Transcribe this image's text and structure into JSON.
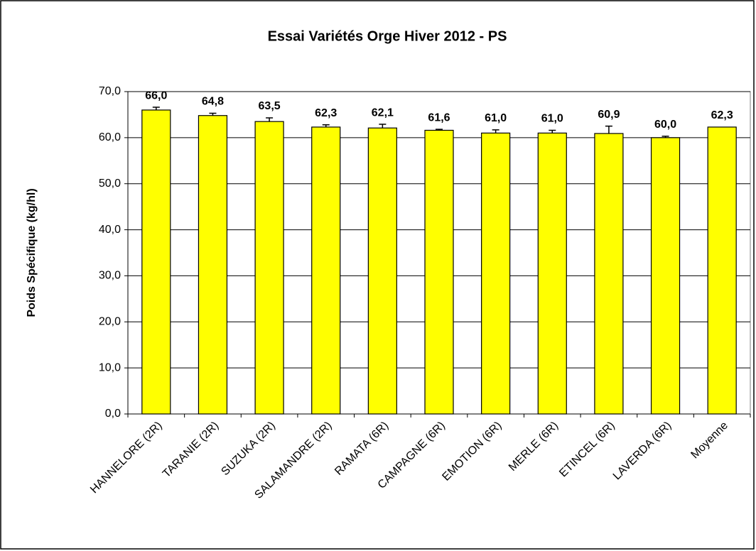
{
  "chart_data": {
    "type": "bar",
    "title": "Essai Variétés Orge Hiver 2012 - PS",
    "y_label": "Poids Spécifique (kg/hl)",
    "categories": [
      "HANNELORE (2R)",
      "TARANIE (2R)",
      "SUZUKA (2R)",
      "SALAMANDRE (2R)",
      "RAMATA (6R)",
      "CAMPAGNE (6R)",
      "EMOTION (6R)",
      "MERLE (6R)",
      "ETINCEL (6R)",
      "LAVERDA (6R)",
      "Moyenne"
    ],
    "values": [
      66.0,
      64.8,
      63.5,
      62.3,
      62.1,
      61.6,
      61.0,
      61.0,
      60.9,
      60.0,
      62.3
    ],
    "value_labels": [
      "66,0",
      "64,8",
      "63,5",
      "62,3",
      "62,1",
      "61,6",
      "61,0",
      "61,0",
      "60,9",
      "60,0",
      "62,3"
    ],
    "errors": [
      0.6,
      0.5,
      0.8,
      0.5,
      0.8,
      0.2,
      0.7,
      0.6,
      1.6,
      0.3,
      null
    ],
    "color": "#ffff00",
    "ylim": [
      0,
      70
    ],
    "yticks": [
      {
        "value": 0,
        "label": "0,0"
      },
      {
        "value": 10,
        "label": "10,0"
      },
      {
        "value": 20,
        "label": "20,0"
      },
      {
        "value": 30,
        "label": "30,0"
      },
      {
        "value": 40,
        "label": "40,0"
      },
      {
        "value": 50,
        "label": "50,0"
      },
      {
        "value": 60,
        "label": "60,0"
      },
      {
        "value": 70,
        "label": "70,0"
      }
    ],
    "grid": true
  }
}
